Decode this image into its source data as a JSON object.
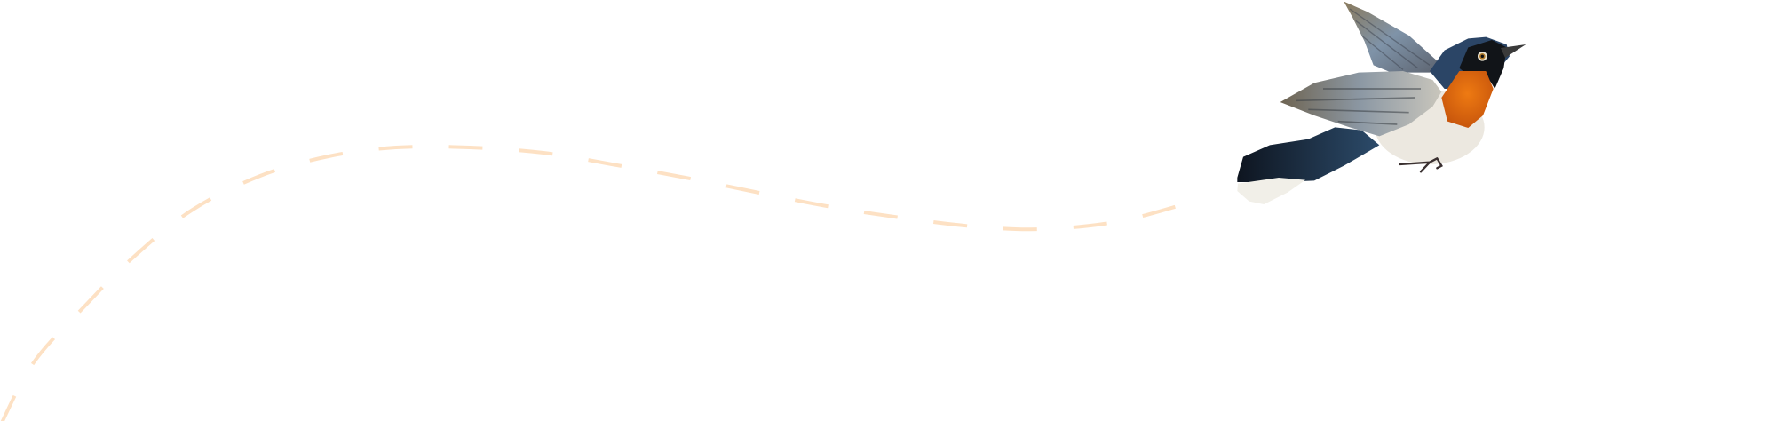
{
  "illustration": {
    "subject": "bird-illustration",
    "trail_style": "dashed-curve"
  },
  "colors": {
    "background": "#ffffff",
    "trail": "#fde1c4",
    "bird_orange": "#e56a10",
    "bird_blue": "#1f3550",
    "bird_wing": "#7d8590"
  }
}
